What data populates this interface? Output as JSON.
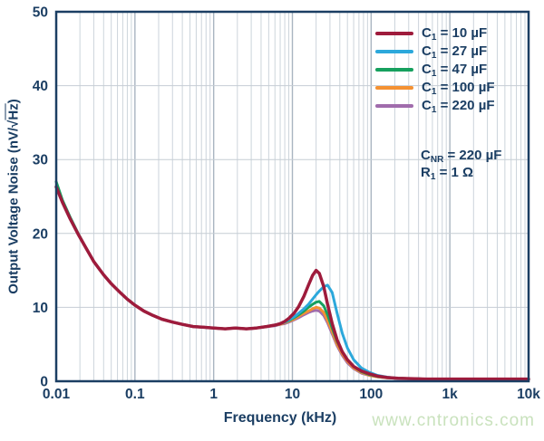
{
  "colors": {
    "axis_navy": "#1b3e63",
    "grid_minor": "#ccd4db",
    "grid_major": "#a9b5c1",
    "grid_horizontal": "#c6cdd4",
    "watermark_green": "#c9e2bd",
    "background": "#ffffff"
  },
  "watermark": {
    "text": "www.cntronics.com"
  },
  "axes": {
    "x_label": "Frequency (kHz)",
    "y_label_pre": "Output Voltage Noise (nV/√",
    "y_label_overline": "Hz",
    "y_label_post": ")"
  },
  "legend": {
    "entries": [
      {
        "pre": "C",
        "sub": "1",
        "rest": " = 10 µF"
      },
      {
        "pre": "C",
        "sub": "1",
        "rest": " = 27 µF"
      },
      {
        "pre": "C",
        "sub": "1",
        "rest": " = 47 µF"
      },
      {
        "pre": "C",
        "sub": "1",
        "rest": " = 100 µF"
      },
      {
        "pre": "C",
        "sub": "1",
        "rest": " = 220 µF"
      }
    ]
  },
  "annotation": {
    "lines": [
      {
        "pre": "C",
        "sub": "NR",
        "rest": " = 220 µF"
      },
      {
        "pre": "R",
        "sub": "1",
        "rest": " = 1 Ω"
      }
    ]
  },
  "chart_data": {
    "type": "line",
    "title": "",
    "xlabel": "Frequency (kHz)",
    "ylabel": "Output Voltage Noise (nV/√Hz)",
    "x_axis": {
      "scale": "log",
      "range": [
        0.01,
        10000
      ],
      "tick_labels": [
        "0.01",
        "0.1",
        "1",
        "10",
        "100",
        "1k",
        "10k"
      ],
      "tick_values": [
        0.01,
        0.1,
        1,
        10,
        100,
        1000,
        10000
      ],
      "grid": "log minor verticals every decade"
    },
    "y_axis": {
      "scale": "linear",
      "range": [
        0,
        50
      ],
      "tick_labels": [
        "0",
        "10",
        "20",
        "30",
        "40",
        "50"
      ],
      "tick_values": [
        0,
        10,
        20,
        30,
        40,
        50
      ],
      "grid": "horizontal at major ticks"
    },
    "conditions": [
      "CNR = 220 µF",
      "R1 = 1 Ω"
    ],
    "legend_position": "top-right-inside",
    "x": [
      0.01,
      0.012,
      0.015,
      0.019,
      0.024,
      0.03,
      0.04,
      0.05,
      0.065,
      0.08,
      0.1,
      0.13,
      0.17,
      0.22,
      0.3,
      0.4,
      0.55,
      0.75,
      1.0,
      1.4,
      1.9,
      2.6,
      3.5,
      4.7,
      6.0,
      7.0,
      8.0,
      9.0,
      10.5,
      12,
      14,
      16,
      18,
      20,
      22,
      25,
      28,
      32,
      37,
      43,
      50,
      60,
      75,
      95,
      120,
      160,
      220,
      320,
      500,
      1000,
      2200,
      5000,
      10000
    ],
    "series": [
      {
        "name": "C1 = 10 µF",
        "color": "#9e1b3c",
        "peak": {
          "x": 20,
          "y": 15.0
        },
        "values": [
          26.3,
          24.2,
          22.0,
          19.9,
          18.0,
          16.2,
          14.4,
          13.2,
          12.0,
          11.1,
          10.3,
          9.5,
          8.9,
          8.4,
          8.0,
          7.7,
          7.4,
          7.3,
          7.2,
          7.1,
          7.2,
          7.1,
          7.2,
          7.4,
          7.6,
          7.8,
          8.1,
          8.5,
          9.2,
          10.1,
          11.5,
          13.0,
          14.3,
          15.0,
          14.6,
          12.8,
          10.4,
          7.8,
          5.6,
          4.0,
          2.9,
          2.0,
          1.4,
          1.0,
          0.7,
          0.5,
          0.4,
          0.35,
          0.3,
          0.3,
          0.3,
          0.3,
          0.3
        ]
      },
      {
        "name": "C1 = 27 µF",
        "color": "#2ca8db",
        "peak": {
          "x": 28,
          "y": 13.0
        },
        "values": [
          26.3,
          24.2,
          22.0,
          19.9,
          18.0,
          16.2,
          14.4,
          13.2,
          12.0,
          11.1,
          10.3,
          9.5,
          8.9,
          8.4,
          8.0,
          7.7,
          7.4,
          7.3,
          7.2,
          7.1,
          7.2,
          7.1,
          7.2,
          7.4,
          7.6,
          7.8,
          8.0,
          8.3,
          8.7,
          9.2,
          9.8,
          10.4,
          11.1,
          11.7,
          12.2,
          12.8,
          13.0,
          12.0,
          9.2,
          6.5,
          4.5,
          2.9,
          1.8,
          1.2,
          0.8,
          0.55,
          0.4,
          0.35,
          0.3,
          0.3,
          0.3,
          0.3,
          0.3
        ]
      },
      {
        "name": "C1 = 47 µF",
        "color": "#16a05e",
        "peak": {
          "x": 22,
          "y": 10.8
        },
        "values": [
          27.0,
          24.5,
          22.2,
          20.0,
          18.0,
          16.2,
          14.4,
          13.2,
          12.0,
          11.1,
          10.3,
          9.5,
          8.9,
          8.4,
          8.0,
          7.7,
          7.4,
          7.3,
          7.2,
          7.1,
          7.2,
          7.1,
          7.2,
          7.4,
          7.6,
          7.8,
          8.0,
          8.2,
          8.6,
          9.0,
          9.5,
          10.0,
          10.4,
          10.7,
          10.8,
          10.2,
          9.0,
          7.2,
          5.4,
          4.0,
          2.9,
          2.0,
          1.3,
          0.9,
          0.65,
          0.5,
          0.4,
          0.35,
          0.3,
          0.3,
          0.3,
          0.3,
          0.3
        ]
      },
      {
        "name": "C1 = 100 µF",
        "color": "#f49132",
        "peak": {
          "x": 20,
          "y": 10.0
        },
        "values": [
          26.3,
          24.2,
          22.0,
          19.9,
          18.0,
          16.2,
          14.4,
          13.2,
          12.0,
          11.1,
          10.3,
          9.5,
          8.9,
          8.4,
          8.0,
          7.7,
          7.4,
          7.3,
          7.2,
          7.1,
          7.2,
          7.1,
          7.2,
          7.4,
          7.6,
          7.7,
          7.9,
          8.1,
          8.4,
          8.8,
          9.2,
          9.5,
          9.8,
          10.0,
          9.9,
          9.3,
          8.2,
          6.7,
          5.0,
          3.7,
          2.7,
          1.8,
          1.2,
          0.8,
          0.6,
          0.45,
          0.4,
          0.35,
          0.3,
          0.3,
          0.3,
          0.3,
          0.3
        ]
      },
      {
        "name": "C1 = 220 µF",
        "color": "#a06cac",
        "peak": {
          "x": 20,
          "y": 9.6
        },
        "values": [
          26.3,
          24.2,
          22.0,
          19.9,
          18.0,
          16.2,
          14.4,
          13.2,
          12.0,
          11.1,
          10.3,
          9.5,
          8.9,
          8.4,
          8.0,
          7.7,
          7.4,
          7.3,
          7.2,
          7.1,
          7.2,
          7.1,
          7.2,
          7.4,
          7.5,
          7.7,
          7.8,
          8.0,
          8.3,
          8.6,
          9.0,
          9.3,
          9.5,
          9.6,
          9.5,
          8.9,
          7.9,
          6.4,
          4.8,
          3.5,
          2.5,
          1.7,
          1.1,
          0.8,
          0.6,
          0.45,
          0.4,
          0.35,
          0.3,
          0.3,
          0.3,
          0.3,
          0.3
        ]
      }
    ]
  }
}
